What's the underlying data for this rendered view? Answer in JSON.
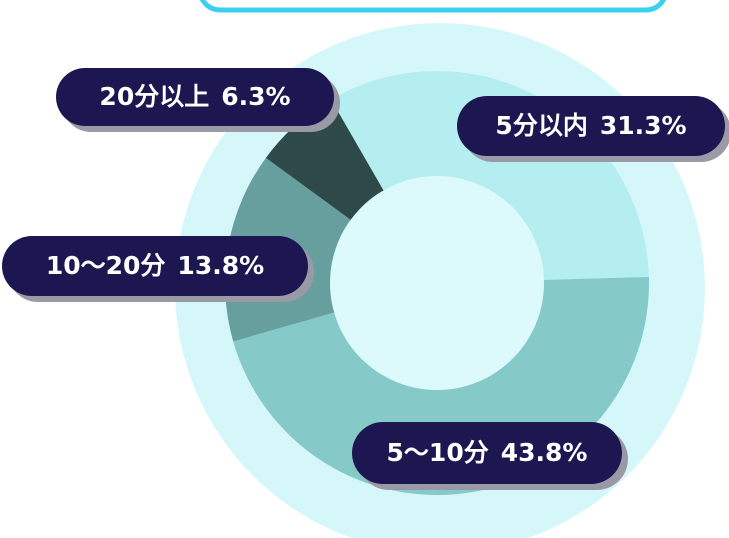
{
  "chart_data": {
    "type": "donut",
    "categories": [
      "5分以内",
      "5～10分",
      "10～20分",
      "20分以上"
    ],
    "values": [
      31.3,
      43.8,
      13.8,
      6.3
    ],
    "value_labels": [
      "31.3%",
      "43.8%",
      "13.8%",
      "6.3%"
    ],
    "colors": [
      "#b4eef1",
      "#86c9c9",
      "#679f9f",
      "#2e4a48"
    ]
  }
}
